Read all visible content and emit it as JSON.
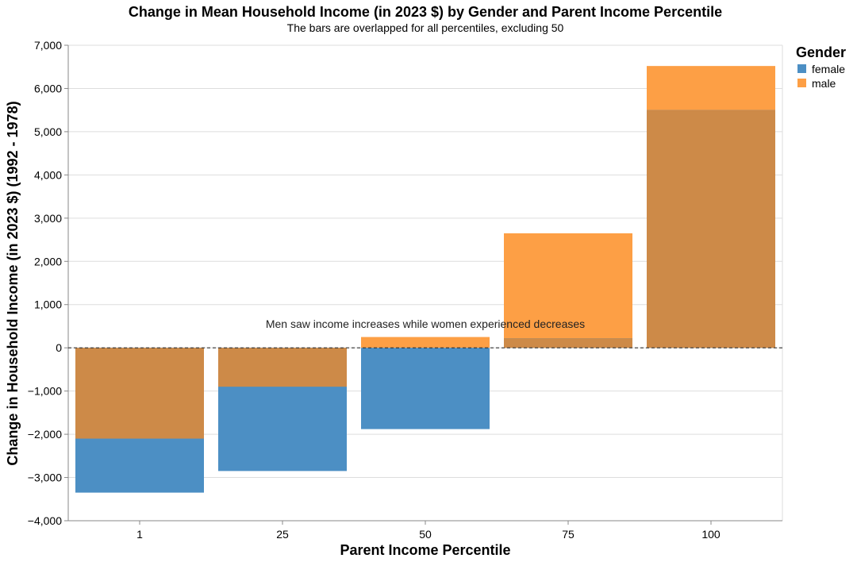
{
  "chart_data": {
    "type": "bar",
    "title": "Change in Mean Household Income (in 2023 $) by Gender and Parent Income Percentile",
    "subtitle": "The bars are overlapped for all percentiles, excluding 50",
    "xlabel": "Parent Income Percentile",
    "ylabel": "Change in Household Income (in 2023 $) (1992 - 1978)",
    "categories": [
      "1",
      "25",
      "50",
      "75",
      "100"
    ],
    "ylim": [
      -4000,
      7000
    ],
    "yticks": [
      7000,
      6000,
      5000,
      4000,
      3000,
      2000,
      1000,
      0,
      -1000,
      -2000,
      -3000,
      -4000
    ],
    "ytick_labels": [
      "7,000",
      "6,000",
      "5,000",
      "4,000",
      "3,000",
      "2,000",
      "1,000",
      "0",
      "−1,000",
      "−2,000",
      "−3,000",
      "−4,000"
    ],
    "grid": true,
    "legend": {
      "title": "Gender",
      "position": "right",
      "entries": [
        "female",
        "male"
      ]
    },
    "series": [
      {
        "name": "female",
        "color": "#4c8fc4",
        "values": [
          -3350,
          -2850,
          -1880,
          220,
          5500
        ]
      },
      {
        "name": "male",
        "color": "#fd9f45",
        "values": [
          -2100,
          -900,
          250,
          2650,
          6520
        ]
      }
    ],
    "overlap_color": "#cd8a48",
    "annotation": "Men saw income increases while women experienced decreases",
    "reference_line": {
      "value": 0,
      "style": "dashed"
    }
  }
}
